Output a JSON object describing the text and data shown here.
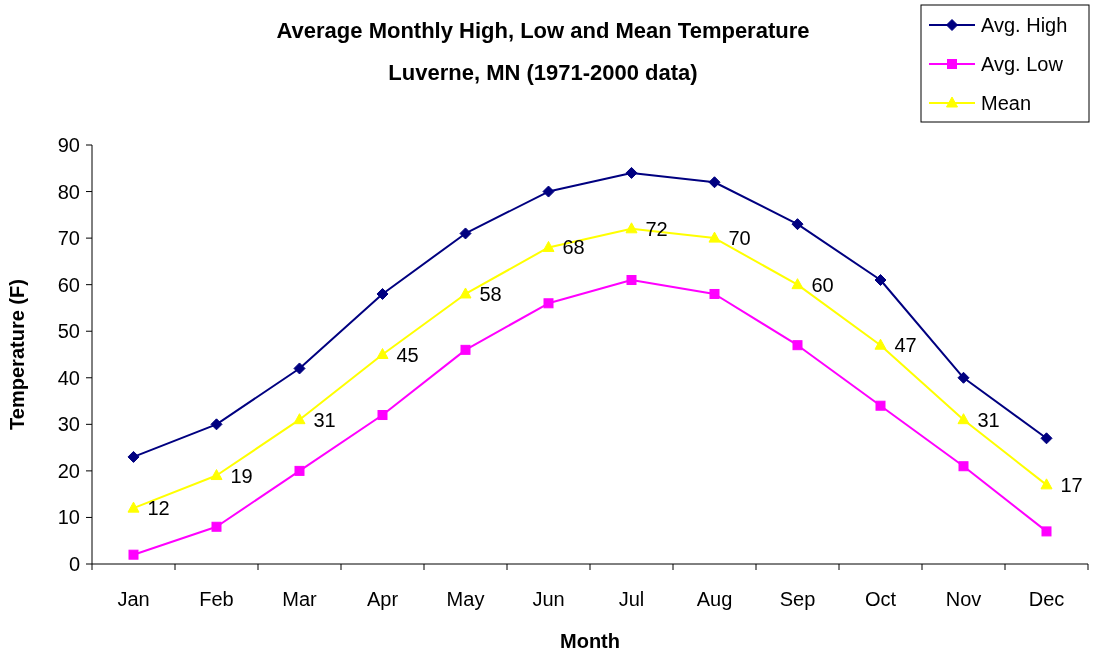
{
  "chart_data": {
    "type": "line",
    "title": "Average Monthly High, Low and Mean Temperature",
    "subtitle": "Luverne, MN  (1971-2000 data)",
    "xlabel": "Month",
    "ylabel": "Temperature (F)",
    "categories": [
      "Jan",
      "Feb",
      "Mar",
      "Apr",
      "May",
      "Jun",
      "Jul",
      "Aug",
      "Sep",
      "Oct",
      "Nov",
      "Dec"
    ],
    "series": [
      {
        "name": "Avg. High",
        "color": "#000080",
        "marker": "diamond",
        "values": [
          23,
          30,
          42,
          58,
          71,
          80,
          84,
          82,
          73,
          61,
          40,
          27
        ]
      },
      {
        "name": "Avg. Low",
        "color": "#ff00ff",
        "marker": "square",
        "values": [
          2,
          8,
          20,
          32,
          46,
          56,
          61,
          58,
          47,
          34,
          21,
          7
        ]
      },
      {
        "name": "Mean",
        "color": "#ffff00",
        "marker": "triangle",
        "values": [
          12,
          19,
          31,
          45,
          58,
          68,
          72,
          70,
          60,
          47,
          31,
          17
        ],
        "value_labels": [
          "12",
          "19",
          "31",
          "45",
          "58",
          "68",
          "72",
          "70",
          "60",
          "47",
          "31",
          "17"
        ]
      }
    ],
    "ylim": [
      0,
      90
    ],
    "yticks": [
      0,
      10,
      20,
      30,
      40,
      50,
      60,
      70,
      80,
      90
    ],
    "grid": false,
    "legend": "top right",
    "line_style": "solid"
  }
}
